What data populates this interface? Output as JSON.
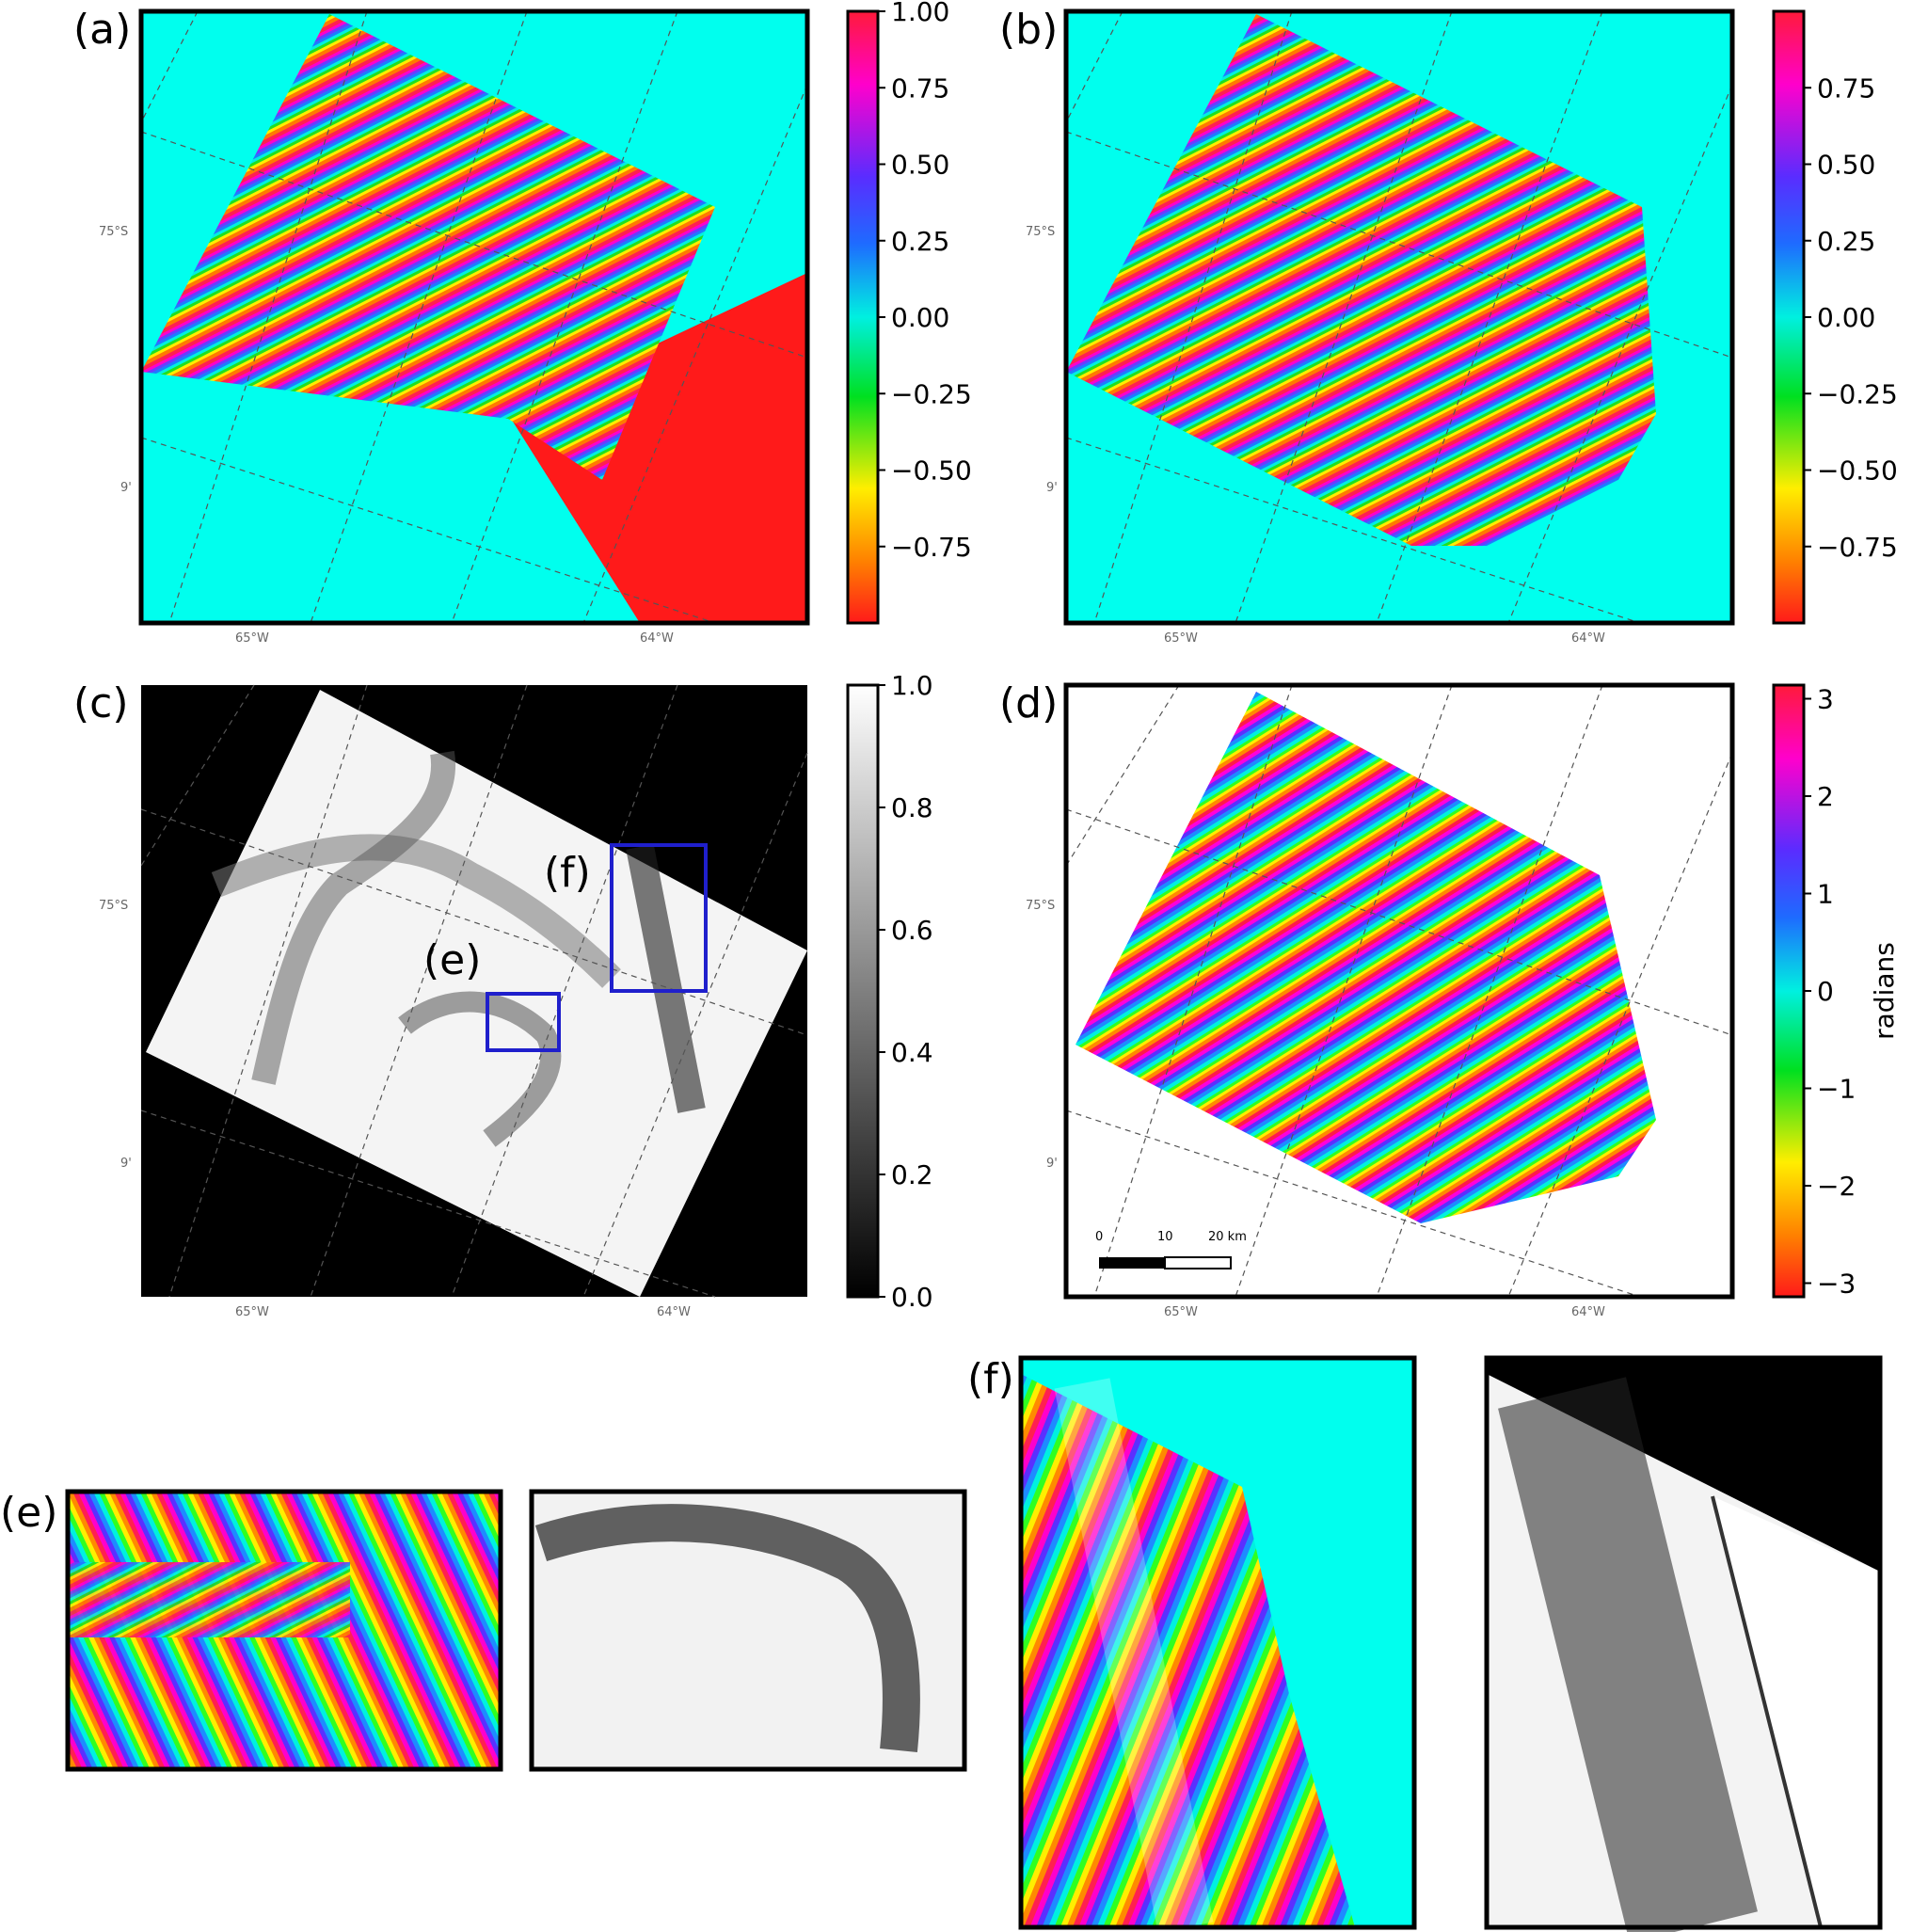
{
  "panel_labels": {
    "a": "(a)",
    "b": "(b)",
    "c": "(c)",
    "d": "(d)",
    "e": "(e)",
    "f": "(f)",
    "box_e": "(e)",
    "box_f": "(f)"
  },
  "geo_labels": {
    "lat_75": "75°S",
    "lat_9": "9'",
    "lon_65": "65°W",
    "lon_64": "64°W"
  },
  "colorbars": {
    "a": {
      "ticks": [
        "1.00",
        "0.75",
        "0.50",
        "0.25",
        "0.00",
        "−0.25",
        "−0.50",
        "−0.75"
      ],
      "values": [
        1.0,
        0.75,
        0.5,
        0.25,
        0.0,
        -0.25,
        -0.5,
        -0.75
      ],
      "range": [
        -1.0,
        1.0
      ]
    },
    "b": {
      "ticks": [
        "0.75",
        "0.50",
        "0.25",
        "0.00",
        "−0.25",
        "−0.50",
        "−0.75"
      ],
      "values": [
        0.75,
        0.5,
        0.25,
        0.0,
        -0.25,
        -0.5,
        -0.75
      ],
      "range": [
        -1.0,
        1.0
      ]
    },
    "c": {
      "ticks": [
        "1.0",
        "0.8",
        "0.6",
        "0.4",
        "0.2",
        "0.0"
      ],
      "values": [
        1.0,
        0.8,
        0.6,
        0.4,
        0.2,
        0.0
      ],
      "range": [
        0.0,
        1.0
      ]
    },
    "d": {
      "ticks": [
        "3",
        "2",
        "1",
        "0",
        "−1",
        "−2",
        "−3"
      ],
      "values": [
        3,
        2,
        1,
        0,
        -1,
        -2,
        -3
      ],
      "range": [
        -3.14,
        3.14
      ],
      "label": "radians"
    }
  },
  "scale_bar": {
    "t0": "0",
    "t10": "10",
    "t20": "20 km"
  },
  "colors": {
    "background_cyan": "#00ffee",
    "outer_black": "#000000",
    "box_blue": "#1f1fcc",
    "fill_red": "#ff1a1a"
  }
}
